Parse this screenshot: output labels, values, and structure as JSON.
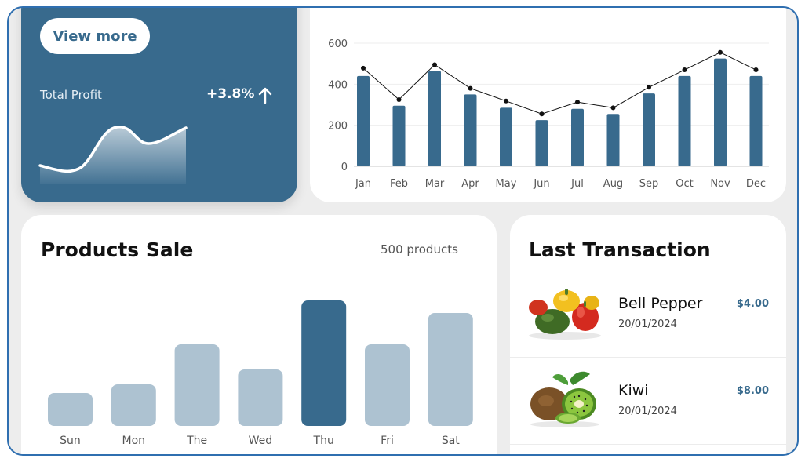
{
  "profit_card": {
    "view_more_label": "View more",
    "total_profit_label": "Total Profit",
    "change_value": "+3.8%",
    "trend_icon": "arrow-up-icon"
  },
  "monthly_chart": {
    "chart_data": {
      "type": "bar",
      "categories": [
        "Jan",
        "Feb",
        "Mar",
        "Apr",
        "May",
        "Jun",
        "Jul",
        "Aug",
        "Sep",
        "Oct",
        "Nov",
        "Dec"
      ],
      "series": [
        {
          "values": [
            440,
            295,
            465,
            350,
            285,
            225,
            280,
            255,
            355,
            440,
            525,
            440
          ]
        },
        {
          "type": "line",
          "values": [
            478,
            325,
            495,
            380,
            318,
            255,
            313,
            285,
            385,
            470,
            555,
            470
          ]
        }
      ],
      "y_ticks": [
        0,
        200,
        400,
        600
      ],
      "ylim": [
        0,
        600
      ],
      "grid": true
    }
  },
  "products_sale": {
    "title": "Products Sale",
    "count_label": "500 products",
    "chart_data": {
      "type": "bar",
      "categories": [
        "Sun",
        "Mon",
        "The",
        "Wed",
        "Thu",
        "Fri",
        "Sat"
      ],
      "values": [
        42,
        53,
        104,
        72,
        160,
        104,
        144
      ],
      "highlight_index": 4
    }
  },
  "last_transaction": {
    "title": "Last Transaction",
    "items": [
      {
        "name": "Bell Pepper",
        "date": "20/01/2024",
        "amount": "$4.00"
      },
      {
        "name": "Kiwi",
        "date": "20/01/2024",
        "amount": "$8.00"
      }
    ]
  },
  "colors": {
    "primary": "#386a8d",
    "bar_light": "#adc2d1",
    "background": "#ededed",
    "frame_border": "#2f6fb0"
  }
}
